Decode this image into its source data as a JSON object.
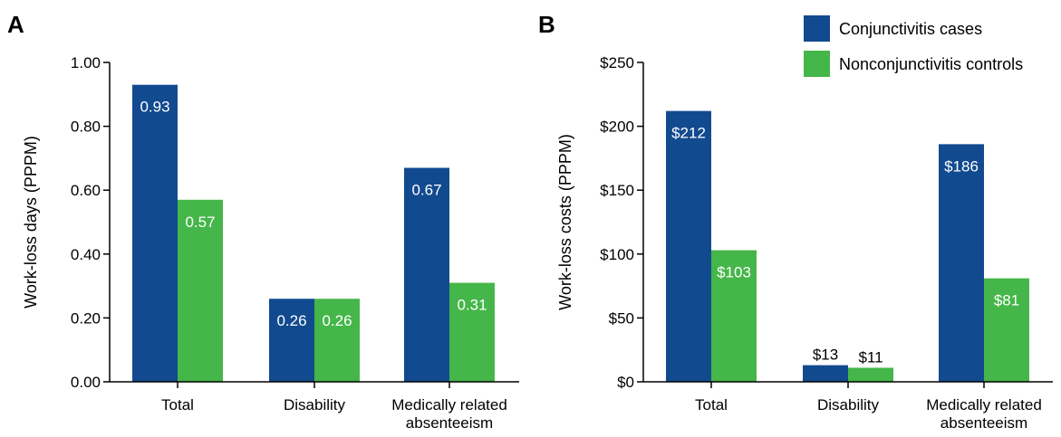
{
  "chart_data": [
    {
      "type": "bar",
      "panel": "A",
      "ylabel": "Work-loss days (PPPM)",
      "ylim": [
        0,
        1.0
      ],
      "yticks": [
        "0.00",
        "0.20",
        "0.40",
        "0.60",
        "0.80",
        "1.00"
      ],
      "categories": [
        [
          "Total"
        ],
        [
          "Disability"
        ],
        [
          "Medically related",
          "absenteeism"
        ]
      ],
      "series": [
        {
          "name": "Conjunctivitis cases",
          "color": "#124a8f",
          "values": [
            0.93,
            0.26,
            0.67
          ],
          "labels": [
            "0.93",
            "0.26",
            "0.67"
          ]
        },
        {
          "name": "Nonconjunctivitis controls",
          "color": "#45b649",
          "values": [
            0.57,
            0.26,
            0.31
          ],
          "labels": [
            "0.57",
            "0.26",
            "0.31"
          ]
        }
      ]
    },
    {
      "type": "bar",
      "panel": "B",
      "ylabel": "Work-loss costs (PPPM)",
      "ylim": [
        0,
        250
      ],
      "yticks": [
        "$0",
        "$50",
        "$100",
        "$150",
        "$200",
        "$250"
      ],
      "categories": [
        [
          "Total"
        ],
        [
          "Disability"
        ],
        [
          "Medically related",
          "absenteeism"
        ]
      ],
      "series": [
        {
          "name": "Conjunctivitis cases",
          "color": "#124a8f",
          "values": [
            212,
            13,
            186
          ],
          "labels": [
            "$212",
            "$13",
            "$186"
          ]
        },
        {
          "name": "Nonconjunctivitis controls",
          "color": "#45b649",
          "values": [
            103,
            11,
            81
          ],
          "labels": [
            "$103",
            "$11",
            "$81"
          ]
        }
      ]
    }
  ],
  "legend": {
    "placement": "top-right",
    "items": [
      {
        "label": "Conjunctivitis cases",
        "color": "#124a8f"
      },
      {
        "label": "Nonconjunctivitis controls",
        "color": "#45b649"
      }
    ]
  }
}
